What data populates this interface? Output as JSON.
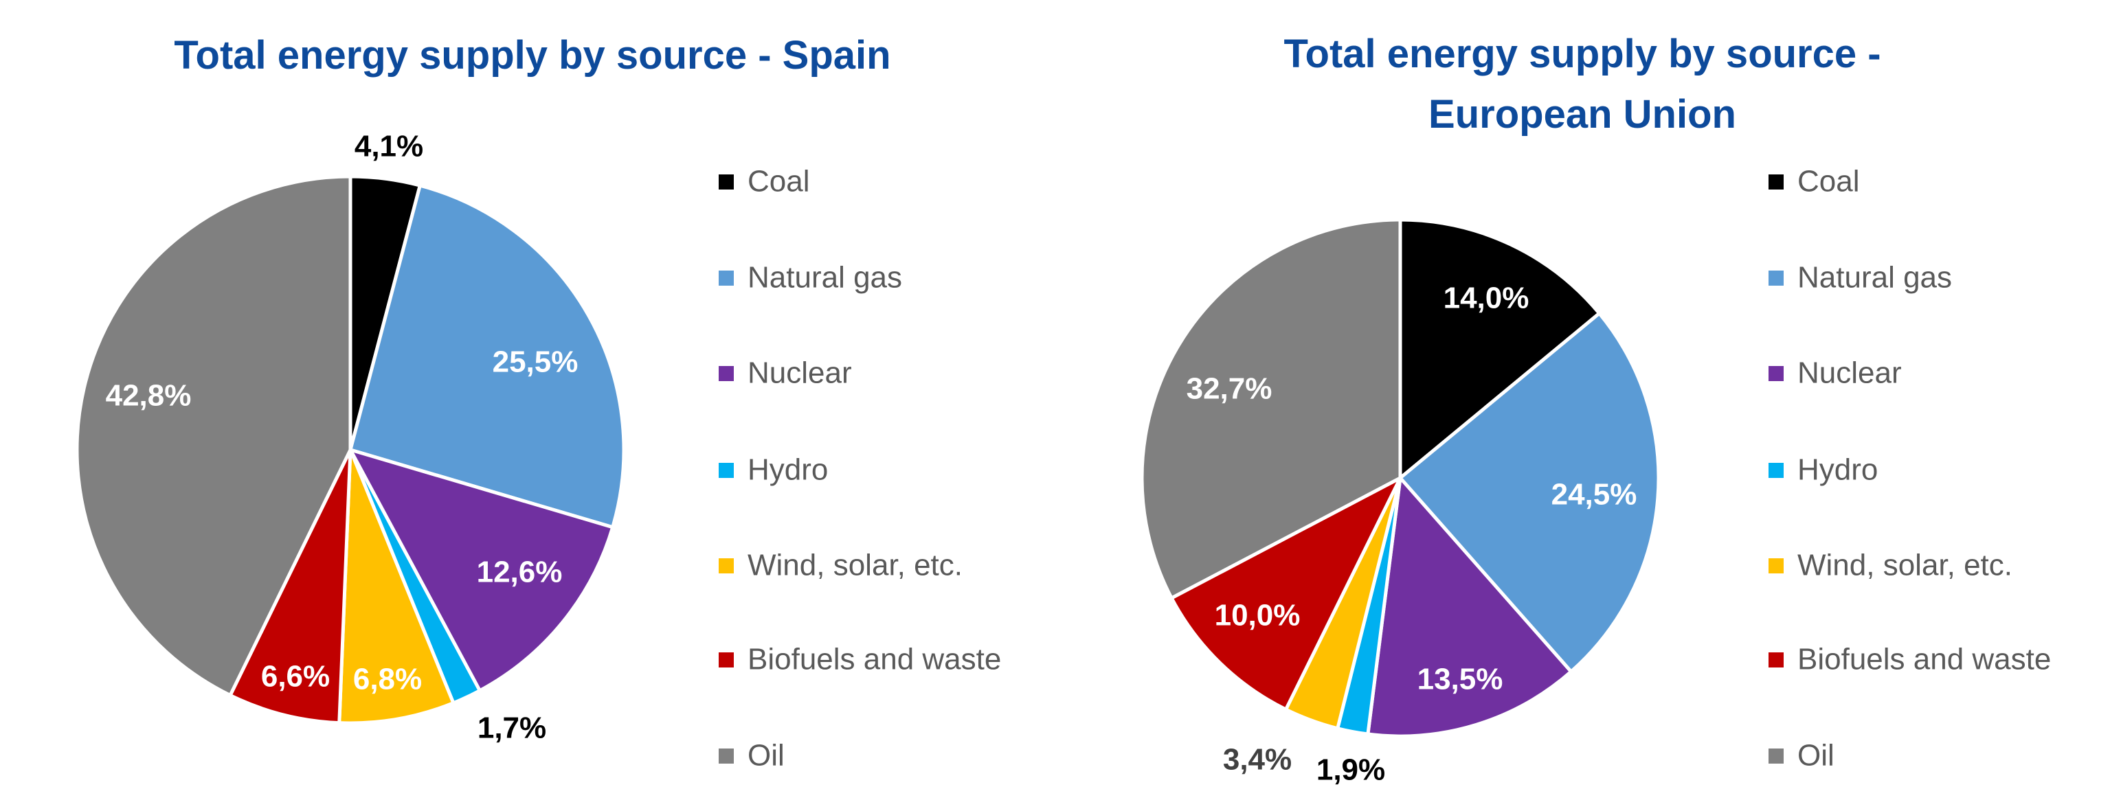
{
  "chart_data": [
    {
      "type": "pie",
      "title": "Total energy supply by source - Spain",
      "categories": [
        "Coal",
        "Natural gas",
        "Nuclear",
        "Hydro",
        "Wind, solar, etc.",
        "Biofuels and waste",
        "Oil"
      ],
      "values": [
        4.1,
        25.5,
        12.6,
        1.7,
        6.8,
        6.6,
        42.8
      ],
      "data_labels": [
        "4,1%",
        "25,5%",
        "12,6%",
        "1,7%",
        "6,8%",
        "6,6%",
        "42,8%"
      ],
      "colors": [
        "#000000",
        "#5B9BD5",
        "#7030A0",
        "#00B0F0",
        "#FFC000",
        "#C00000",
        "#808080"
      ],
      "legend_position": "right"
    },
    {
      "type": "pie",
      "title": [
        "Total energy supply by source -",
        "European Union"
      ],
      "categories": [
        "Coal",
        "Natural gas",
        "Nuclear",
        "Hydro",
        "Wind, solar, etc.",
        "Biofuels and waste",
        "Oil"
      ],
      "values": [
        14.0,
        24.5,
        13.5,
        1.9,
        3.4,
        10.0,
        32.7
      ],
      "data_labels": [
        "14,0%",
        "24,5%",
        "13,5%",
        "1,9%",
        "3,4%",
        "10,0%",
        "32,7%"
      ],
      "colors": [
        "#000000",
        "#5B9BD5",
        "#7030A0",
        "#00B0F0",
        "#FFC000",
        "#C00000",
        "#808080"
      ],
      "legend_position": "right"
    }
  ]
}
